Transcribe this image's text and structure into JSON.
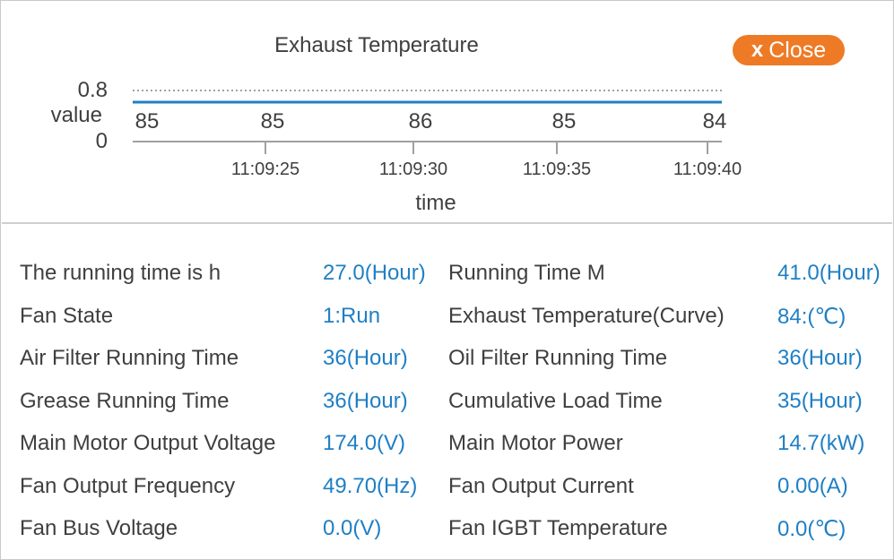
{
  "chart": {
    "title": "Exhaust Temperature",
    "close_label": "Close",
    "close_icon": "x",
    "ylabel": "value",
    "xlabel": "time",
    "y_ticks": [
      "0.8",
      "0"
    ],
    "point_labels": [
      "85",
      "85",
      "86",
      "85",
      "84"
    ],
    "x_ticks": [
      "11:09:25",
      "11:09:30",
      "11:09:35",
      "11:09:40"
    ]
  },
  "chart_data": {
    "type": "line",
    "title": "Exhaust Temperature",
    "xlabel": "time",
    "ylabel": "value",
    "ylim": [
      0,
      0.8
    ],
    "x": [
      "",
      "11:09:25",
      "11:09:30",
      "11:09:35",
      "11:09:40"
    ],
    "series": [
      {
        "values": [
          85,
          85,
          86,
          85,
          84
        ],
        "color": "#1f7fc4"
      }
    ],
    "grid": false,
    "reference_line_color": "#9aa4ad",
    "axis_color": "#a0a0a0"
  },
  "info": {
    "rows": [
      {
        "left_label": "The running time is h",
        "left_value": "27.0(Hour)",
        "right_label": "Running Time M",
        "right_value": "41.0(Hour)"
      },
      {
        "left_label": "Fan State",
        "left_value": "1:Run",
        "right_label": "Exhaust Temperature(Curve)",
        "right_value": "84:(℃)"
      },
      {
        "left_label": "Air Filter Running Time",
        "left_value": "36(Hour)",
        "right_label": "Oil Filter Running Time",
        "right_value": "36(Hour)"
      },
      {
        "left_label": "Grease Running Time",
        "left_value": "36(Hour)",
        "right_label": "Cumulative Load Time",
        "right_value": "35(Hour)"
      },
      {
        "left_label": "Main Motor Output Voltage",
        "left_value": "174.0(V)",
        "right_label": "Main Motor Power",
        "right_value": "14.7(kW)"
      },
      {
        "left_label": "Fan Output Frequency",
        "left_value": "49.70(Hz)",
        "right_label": "Fan Output Current",
        "right_value": "0.00(A)"
      },
      {
        "left_label": "Fan Bus Voltage",
        "left_value": "0.0(V)",
        "right_label": "Fan IGBT Temperature",
        "right_value": "0.0(℃)"
      }
    ]
  },
  "colors": {
    "accent": "#ee7a25",
    "value_blue": "#1f7fc4"
  }
}
